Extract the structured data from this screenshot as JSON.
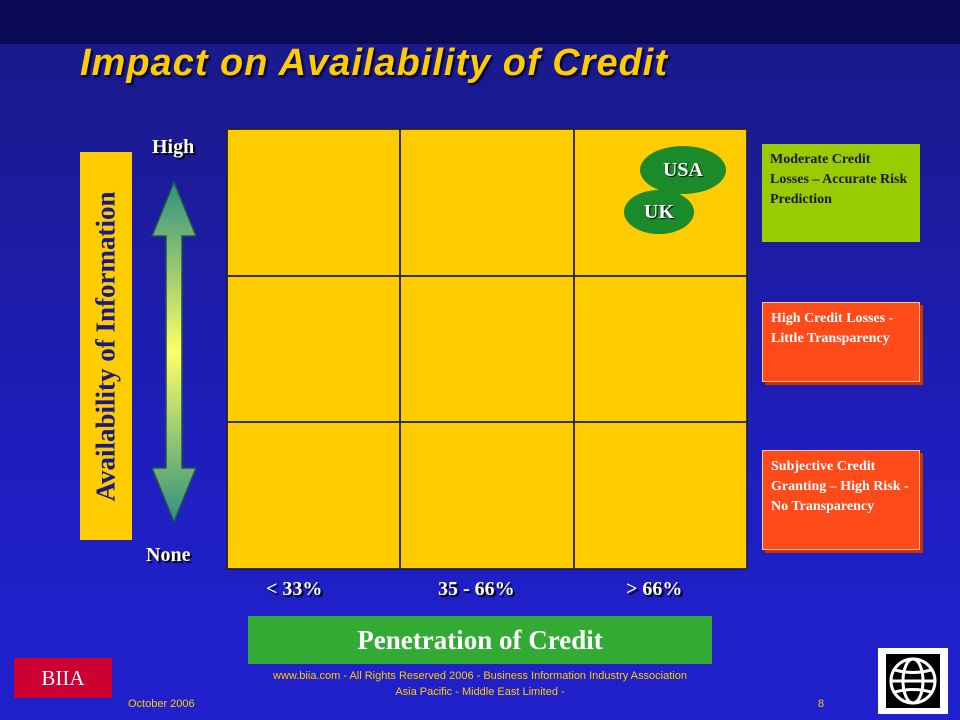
{
  "slide": {
    "title": "Impact on Availability of Credit"
  },
  "diagram": {
    "y_axis_label": "Availability of Information",
    "x_axis_label": "Penetration of Credit",
    "y_high": "High",
    "y_low": "None",
    "x_ticks": [
      "< 33%",
      "35 - 66%",
      "> 66%"
    ],
    "markers": [
      {
        "label": "USA"
      },
      {
        "label": "UK"
      }
    ],
    "legend": [
      {
        "text": "Moderate Credit Losses – Accurate Risk Prediction",
        "color": "#99cc00"
      },
      {
        "text": "High Credit Losses - Little Transparency",
        "color": "#ff4a1a"
      },
      {
        "text": "Subjective Credit Granting – High Risk - No Transparency",
        "color": "#ff4a1a"
      }
    ]
  },
  "footer": {
    "logo_text": "BIIA",
    "line1": "www.biia.com  - All Rights Reserved 2006 -  Business Information Industry Association",
    "line2": "Asia Pacific - Middle East Limited -",
    "date": "October  2006",
    "page": "8"
  }
}
